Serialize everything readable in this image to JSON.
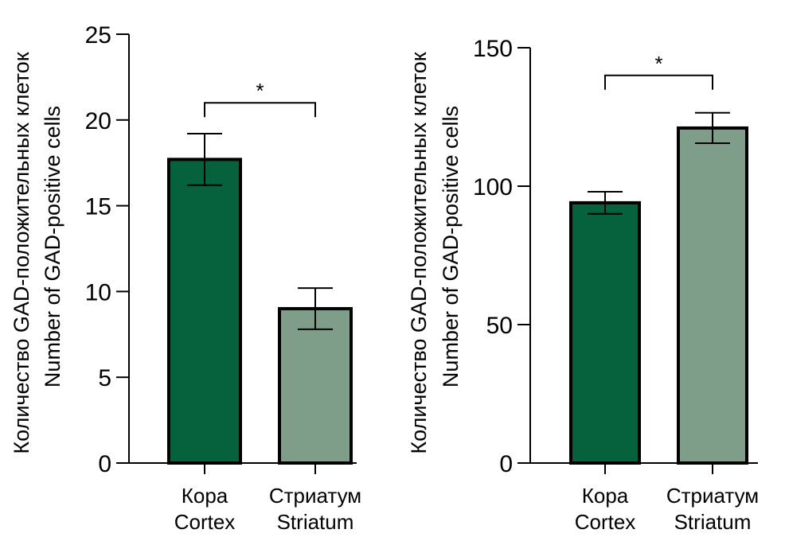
{
  "chart_data": [
    {
      "type": "bar",
      "categories": [
        {
          "ru": "Кора",
          "en": "Cortex"
        },
        {
          "ru": "Стриатум",
          "en": "Striatum"
        }
      ],
      "values": [
        17.7,
        9.0
      ],
      "errors": [
        1.5,
        1.2
      ],
      "colors": [
        "#05623d",
        "#7f9e8a"
      ],
      "ylabel_ru": "Количество GAD-положительных клеток",
      "ylabel_en": "Number of GAD-positive cells",
      "ylim": [
        0,
        25
      ],
      "yticks": [
        0,
        5,
        10,
        15,
        20,
        25
      ],
      "significance": {
        "pair": [
          0,
          1
        ],
        "label": "*",
        "level": 21
      }
    },
    {
      "type": "bar",
      "categories": [
        {
          "ru": "Кора",
          "en": "Cortex"
        },
        {
          "ru": "Стриатум",
          "en": "Striatum"
        }
      ],
      "values": [
        94,
        121
      ],
      "errors": [
        4,
        5.5
      ],
      "colors": [
        "#05623d",
        "#7f9e8a"
      ],
      "ylabel_ru": "Количество GAD-положительных клеток",
      "ylabel_en": "Number of GAD-positive cells",
      "ylim": [
        0,
        150
      ],
      "yticks": [
        0,
        50,
        100,
        150
      ],
      "significance": {
        "pair": [
          0,
          1
        ],
        "label": "*",
        "level": 140
      }
    }
  ]
}
